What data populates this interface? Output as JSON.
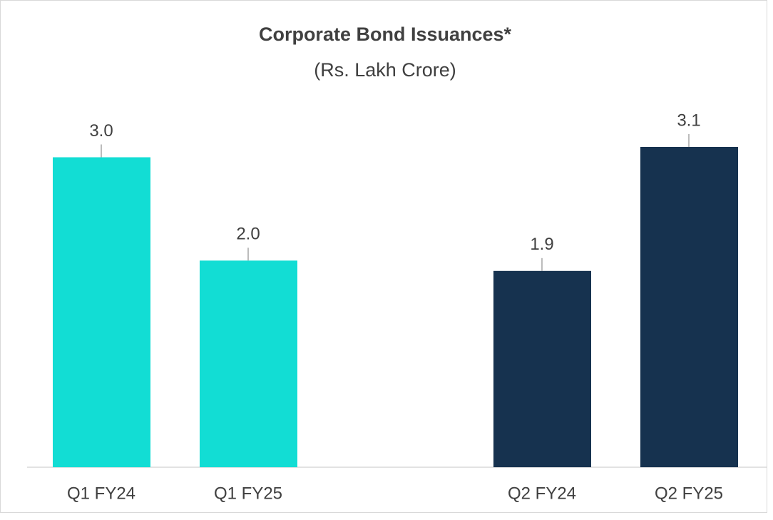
{
  "chart_data": {
    "type": "bar",
    "title": "Corporate Bond Issuances*",
    "subtitle": "(Rs. Lakh Crore)",
    "categories": [
      "Q1 FY24",
      "Q1 FY25",
      null,
      "Q2 FY24",
      "Q2 FY25"
    ],
    "values": [
      3.0,
      2.0,
      null,
      1.9,
      3.1
    ],
    "value_labels": [
      "3.0",
      "2.0",
      null,
      "1.9",
      "3.1"
    ],
    "colors": [
      "#12ddd4",
      "#12ddd4",
      null,
      "#16324f",
      "#16324f"
    ]
  }
}
